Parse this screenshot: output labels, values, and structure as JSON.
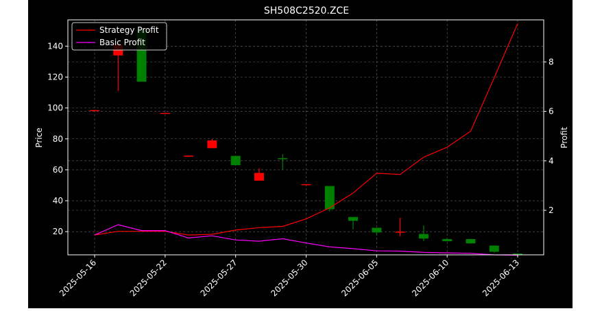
{
  "chart_data": {
    "type": "candlestick",
    "title": "SH508C2520.ZCE",
    "ylabel": "Price",
    "y2label": "Profit",
    "ylim": [
      5,
      157
    ],
    "y2lim": [
      0.2,
      9.7
    ],
    "yticks": [
      20,
      40,
      60,
      80,
      100,
      120,
      140
    ],
    "y2ticks": [
      2,
      4,
      6,
      8
    ],
    "xtick_labels": [
      "2025-05-16",
      "2025-05-22",
      "2025-05-27",
      "2025-05-30",
      "2025-06-05",
      "2025-06-10",
      "2025-06-13"
    ],
    "xtick_positions": [
      0,
      3,
      6,
      9,
      12,
      15,
      18
    ],
    "grid": true,
    "legend_position": "top-left",
    "colors": {
      "up": "#ff0000",
      "down": "#008000",
      "strategy": "#ff0000",
      "basic": "#ff00ff",
      "grid": "#808080"
    },
    "candles": [
      {
        "open": 98.5,
        "high": 98.8,
        "low": 98.2,
        "close": 98.6
      },
      {
        "open": 134,
        "high": 143,
        "low": 111,
        "close": 141
      },
      {
        "open": 151,
        "high": 151,
        "low": 117,
        "close": 117
      },
      {
        "open": 96.6,
        "high": 96.9,
        "low": 96.3,
        "close": 96.8
      },
      {
        "open": 69,
        "high": 69.3,
        "low": 68.7,
        "close": 69.2
      },
      {
        "open": 74,
        "high": 80,
        "low": 74,
        "close": 79
      },
      {
        "open": 69,
        "high": 69,
        "low": 63,
        "close": 63
      },
      {
        "open": 53,
        "high": 61,
        "low": 53,
        "close": 58
      },
      {
        "open": 67.5,
        "high": 70,
        "low": 60,
        "close": 67
      },
      {
        "open": 50.5,
        "high": 50.8,
        "low": 50.2,
        "close": 50.7
      },
      {
        "open": 49.5,
        "high": 49.5,
        "low": 33,
        "close": 34.5
      },
      {
        "open": 29.5,
        "high": 29.5,
        "low": 21.5,
        "close": 27
      },
      {
        "open": 22.5,
        "high": 22.5,
        "low": 18,
        "close": 19.5
      },
      {
        "open": 19.5,
        "high": 29,
        "low": 17,
        "close": 20
      },
      {
        "open": 18.5,
        "high": 24,
        "low": 14,
        "close": 15.5
      },
      {
        "open": 15.2,
        "high": 15.6,
        "low": 13.8,
        "close": 13.8
      },
      {
        "open": 15.2,
        "high": 15.4,
        "low": 12.2,
        "close": 12.4
      },
      {
        "open": 11,
        "high": 11,
        "low": 6.5,
        "close": 7
      },
      {
        "open": 5.8,
        "high": 6,
        "low": 5.2,
        "close": 5.3
      }
    ],
    "series": [
      {
        "name": "Strategy Profit",
        "axis": "right",
        "values": [
          1.0,
          1.15,
          1.15,
          1.15,
          1.0,
          1.03,
          1.2,
          1.3,
          1.35,
          1.65,
          2.1,
          2.7,
          3.5,
          3.45,
          4.15,
          4.55,
          5.2,
          7.35,
          9.55
        ]
      },
      {
        "name": "Basic Profit",
        "axis": "right",
        "values": [
          1.0,
          1.42,
          1.18,
          1.18,
          0.88,
          0.97,
          0.8,
          0.75,
          0.85,
          0.68,
          0.52,
          0.45,
          0.36,
          0.35,
          0.3,
          0.28,
          0.26,
          0.2,
          0.18
        ]
      }
    ]
  }
}
